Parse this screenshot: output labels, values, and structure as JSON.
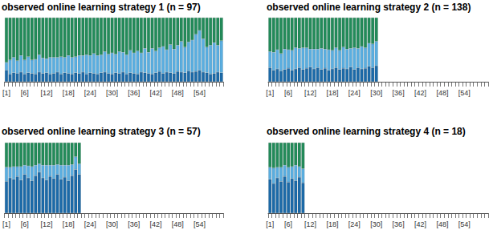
{
  "chart_data": [
    {
      "type": "bar",
      "title": "observed online learning strategy 1 (n = 97)",
      "stacked": true,
      "grid": false,
      "tick_labels": "x",
      "ylim": [
        0,
        1
      ],
      "categories": [
        "[1]",
        null,
        null,
        null,
        null,
        "[6]",
        null,
        null,
        null,
        null,
        null,
        "[12]",
        null,
        null,
        null,
        null,
        null,
        "[18]",
        null,
        null,
        null,
        null,
        null,
        "[24]",
        null,
        null,
        null,
        null,
        null,
        "[30]",
        null,
        null,
        null,
        null,
        null,
        "[36]",
        null,
        null,
        null,
        null,
        null,
        "[42]",
        null,
        null,
        null,
        null,
        null,
        "[48]",
        null,
        null,
        null,
        null,
        null,
        "[54]",
        null,
        null,
        null,
        null,
        null,
        null
      ],
      "series": [
        {
          "color": "#1c6aa8",
          "values": [
            0.18,
            0.12,
            0.14,
            0.13,
            0.15,
            0.12,
            0.14,
            0.13,
            0.12,
            0.15,
            0.13,
            0.14,
            0.12,
            0.13,
            0.15,
            0.12,
            0.14,
            0.13,
            0.12,
            0.14,
            0.13,
            0.15,
            0.12,
            0.14,
            0.13,
            0.12,
            0.14,
            0.15,
            0.13,
            0.12,
            0.14,
            0.13,
            0.15,
            0.12,
            0.14,
            0.13,
            0.12,
            0.15,
            0.14,
            0.13,
            0.12,
            0.14,
            0.16,
            0.13,
            0.15,
            0.14,
            0.13,
            0.16,
            0.15,
            0.14,
            0.17,
            0.15,
            0.16,
            0.18,
            0.15,
            0.14,
            0.12,
            0.13,
            0.15,
            0.14
          ]
        },
        {
          "color": "#5aaee0",
          "values": [
            0.12,
            0.22,
            0.24,
            0.2,
            0.26,
            0.22,
            0.25,
            0.21,
            0.23,
            0.27,
            0.24,
            0.22,
            0.26,
            0.25,
            0.23,
            0.27,
            0.24,
            0.28,
            0.26,
            0.25,
            0.28,
            0.26,
            0.3,
            0.27,
            0.31,
            0.29,
            0.28,
            0.32,
            0.3,
            0.33,
            0.29,
            0.34,
            0.31,
            0.3,
            0.35,
            0.32,
            0.36,
            0.3,
            0.38,
            0.33,
            0.4,
            0.34,
            0.37,
            0.42,
            0.35,
            0.44,
            0.38,
            0.41,
            0.48,
            0.4,
            0.45,
            0.5,
            0.58,
            0.62,
            0.52,
            0.4,
            0.45,
            0.48,
            0.42,
            0.5
          ]
        },
        {
          "color": "#238b5a",
          "values": [
            0.7,
            0.66,
            0.62,
            0.67,
            0.59,
            0.66,
            0.61,
            0.66,
            0.65,
            0.58,
            0.63,
            0.64,
            0.62,
            0.62,
            0.62,
            0.61,
            0.62,
            0.59,
            0.62,
            0.61,
            0.59,
            0.59,
            0.58,
            0.59,
            0.56,
            0.59,
            0.58,
            0.53,
            0.57,
            0.55,
            0.57,
            0.53,
            0.54,
            0.58,
            0.51,
            0.55,
            0.52,
            0.55,
            0.48,
            0.54,
            0.48,
            0.52,
            0.47,
            0.45,
            0.5,
            0.42,
            0.49,
            0.43,
            0.37,
            0.46,
            0.38,
            0.35,
            0.26,
            0.2,
            0.33,
            0.46,
            0.43,
            0.39,
            0.43,
            0.36
          ]
        }
      ]
    },
    {
      "type": "bar",
      "title": "observed online learning strategy 2 (n = 138)",
      "stacked": true,
      "grid": false,
      "tick_labels": "x",
      "ylim": [
        0,
        1
      ],
      "categories": [
        "[1]",
        null,
        null,
        null,
        null,
        "[6]",
        null,
        null,
        null,
        null,
        null,
        "[12]",
        null,
        null,
        null,
        null,
        null,
        "[18]",
        null,
        null,
        null,
        null,
        null,
        "[24]",
        null,
        null,
        null,
        null,
        null,
        "[30]",
        null,
        null,
        null,
        null,
        null,
        "[36]",
        null,
        null,
        null,
        null,
        null,
        "[42]",
        null,
        null,
        null,
        null,
        null,
        "[48]",
        null,
        null,
        null,
        null,
        null,
        "[54]",
        null,
        null,
        null,
        null,
        null,
        null
      ],
      "series": [
        {
          "color": "#1c6aa8",
          "values": [
            0.22,
            0.18,
            0.2,
            0.17,
            0.19,
            0.21,
            0.18,
            0.2,
            0.22,
            0.19,
            0.21,
            0.23,
            0.2,
            0.22,
            0.19,
            0.21,
            0.18,
            0.2,
            0.22,
            0.19,
            0.21,
            0.2,
            0.23,
            0.19,
            0.22,
            0.2,
            0.21,
            0.24,
            0.22,
            0.25,
            null,
            null,
            null,
            null,
            null,
            null,
            null,
            null,
            null,
            null,
            null,
            null,
            null,
            null,
            null,
            null,
            null,
            null,
            null,
            null,
            null,
            null,
            null,
            null,
            null,
            null,
            null,
            null,
            null,
            null
          ]
        },
        {
          "color": "#5aaee0",
          "values": [
            0.25,
            0.28,
            0.3,
            0.27,
            0.32,
            0.29,
            0.31,
            0.33,
            0.3,
            0.34,
            0.32,
            0.28,
            0.31,
            0.29,
            0.33,
            0.3,
            0.32,
            0.29,
            0.31,
            0.3,
            0.33,
            0.31,
            0.29,
            0.34,
            0.3,
            0.35,
            0.32,
            0.36,
            0.37,
            0.38,
            null,
            null,
            null,
            null,
            null,
            null,
            null,
            null,
            null,
            null,
            null,
            null,
            null,
            null,
            null,
            null,
            null,
            null,
            null,
            null,
            null,
            null,
            null,
            null,
            null,
            null,
            null,
            null,
            null,
            null
          ]
        },
        {
          "color": "#238b5a",
          "values": [
            0.53,
            0.54,
            0.5,
            0.56,
            0.49,
            0.5,
            0.51,
            0.47,
            0.48,
            0.47,
            0.47,
            0.49,
            0.49,
            0.49,
            0.48,
            0.49,
            0.5,
            0.51,
            0.47,
            0.51,
            0.46,
            0.49,
            0.48,
            0.47,
            0.48,
            0.45,
            0.47,
            0.4,
            0.41,
            0.37,
            null,
            null,
            null,
            null,
            null,
            null,
            null,
            null,
            null,
            null,
            null,
            null,
            null,
            null,
            null,
            null,
            null,
            null,
            null,
            null,
            null,
            null,
            null,
            null,
            null,
            null,
            null,
            null,
            null,
            null
          ]
        }
      ]
    },
    {
      "type": "bar",
      "title": "observed online learning strategy 3 (n = 57)",
      "stacked": true,
      "grid": false,
      "tick_labels": "x",
      "ylim": [
        0,
        1
      ],
      "categories": [
        "[1]",
        null,
        null,
        null,
        null,
        "[6]",
        null,
        null,
        null,
        null,
        null,
        "[12]",
        null,
        null,
        null,
        null,
        null,
        "[18]",
        null,
        null,
        null,
        null,
        null,
        "[24]",
        null,
        null,
        null,
        null,
        null,
        "[30]",
        null,
        null,
        null,
        null,
        null,
        "[36]",
        null,
        null,
        null,
        null,
        null,
        "[42]",
        null,
        null,
        null,
        null,
        null,
        "[48]",
        null,
        null,
        null,
        null,
        null,
        "[54]",
        null,
        null,
        null,
        null,
        null,
        null
      ],
      "series": [
        {
          "color": "#1c6aa8",
          "values": [
            0.45,
            0.5,
            0.48,
            0.52,
            0.47,
            0.55,
            0.5,
            0.46,
            0.53,
            0.58,
            0.5,
            0.47,
            0.52,
            0.49,
            0.55,
            0.48,
            0.51,
            0.46,
            0.53,
            0.62,
            0.55,
            null,
            null,
            null,
            null,
            null,
            null,
            null,
            null,
            null,
            null,
            null,
            null,
            null,
            null,
            null,
            null,
            null,
            null,
            null,
            null,
            null,
            null,
            null,
            null,
            null,
            null,
            null,
            null,
            null,
            null,
            null,
            null,
            null,
            null,
            null,
            null,
            null,
            null,
            null
          ]
        },
        {
          "color": "#5aaee0",
          "values": [
            0.2,
            0.15,
            0.18,
            0.14,
            0.19,
            0.13,
            0.17,
            0.2,
            0.15,
            0.12,
            0.18,
            0.21,
            0.16,
            0.19,
            0.14,
            0.2,
            0.17,
            0.22,
            0.16,
            0.18,
            0.15,
            null,
            null,
            null,
            null,
            null,
            null,
            null,
            null,
            null,
            null,
            null,
            null,
            null,
            null,
            null,
            null,
            null,
            null,
            null,
            null,
            null,
            null,
            null,
            null,
            null,
            null,
            null,
            null,
            null,
            null,
            null,
            null,
            null,
            null,
            null,
            null,
            null,
            null,
            null
          ]
        },
        {
          "color": "#238b5a",
          "values": [
            0.35,
            0.35,
            0.34,
            0.34,
            0.34,
            0.32,
            0.33,
            0.34,
            0.32,
            0.3,
            0.32,
            0.32,
            0.32,
            0.32,
            0.31,
            0.32,
            0.32,
            0.32,
            0.31,
            0.2,
            0.3,
            null,
            null,
            null,
            null,
            null,
            null,
            null,
            null,
            null,
            null,
            null,
            null,
            null,
            null,
            null,
            null,
            null,
            null,
            null,
            null,
            null,
            null,
            null,
            null,
            null,
            null,
            null,
            null,
            null,
            null,
            null,
            null,
            null,
            null,
            null,
            null,
            null,
            null,
            null
          ]
        }
      ]
    },
    {
      "type": "bar",
      "title": "observed online learning strategy 4 (n = 18)",
      "stacked": true,
      "grid": false,
      "tick_labels": "x",
      "ylim": [
        0,
        1
      ],
      "categories": [
        "[1]",
        null,
        null,
        null,
        null,
        "[6]",
        null,
        null,
        null,
        null,
        null,
        "[12]",
        null,
        null,
        null,
        null,
        null,
        "[18]",
        null,
        null,
        null,
        null,
        null,
        "[24]",
        null,
        null,
        null,
        null,
        null,
        "[30]",
        null,
        null,
        null,
        null,
        null,
        "[36]",
        null,
        null,
        null,
        null,
        null,
        "[42]",
        null,
        null,
        null,
        null,
        null,
        "[48]",
        null,
        null,
        null,
        null,
        null,
        "[54]",
        null,
        null,
        null,
        null,
        null,
        null
      ],
      "series": [
        {
          "color": "#1c6aa8",
          "values": [
            0.48,
            0.42,
            0.5,
            0.45,
            0.52,
            0.44,
            0.49,
            0.46,
            0.51,
            0.43,
            null,
            null,
            null,
            null,
            null,
            null,
            null,
            null,
            null,
            null,
            null,
            null,
            null,
            null,
            null,
            null,
            null,
            null,
            null,
            null,
            null,
            null,
            null,
            null,
            null,
            null,
            null,
            null,
            null,
            null,
            null,
            null,
            null,
            null,
            null,
            null,
            null,
            null,
            null,
            null,
            null,
            null,
            null,
            null,
            null,
            null,
            null,
            null,
            null,
            null
          ]
        },
        {
          "color": "#5aaee0",
          "values": [
            0.17,
            0.22,
            0.15,
            0.2,
            0.16,
            0.21,
            0.17,
            0.22,
            0.15,
            0.2,
            null,
            null,
            null,
            null,
            null,
            null,
            null,
            null,
            null,
            null,
            null,
            null,
            null,
            null,
            null,
            null,
            null,
            null,
            null,
            null,
            null,
            null,
            null,
            null,
            null,
            null,
            null,
            null,
            null,
            null,
            null,
            null,
            null,
            null,
            null,
            null,
            null,
            null,
            null,
            null,
            null,
            null,
            null,
            null,
            null,
            null,
            null,
            null,
            null,
            null
          ]
        },
        {
          "color": "#238b5a",
          "values": [
            0.35,
            0.36,
            0.35,
            0.35,
            0.32,
            0.35,
            0.34,
            0.32,
            0.34,
            0.37,
            null,
            null,
            null,
            null,
            null,
            null,
            null,
            null,
            null,
            null,
            null,
            null,
            null,
            null,
            null,
            null,
            null,
            null,
            null,
            null,
            null,
            null,
            null,
            null,
            null,
            null,
            null,
            null,
            null,
            null,
            null,
            null,
            null,
            null,
            null,
            null,
            null,
            null,
            null,
            null,
            null,
            null,
            null,
            null,
            null,
            null,
            null,
            null,
            null,
            null
          ]
        }
      ]
    }
  ]
}
